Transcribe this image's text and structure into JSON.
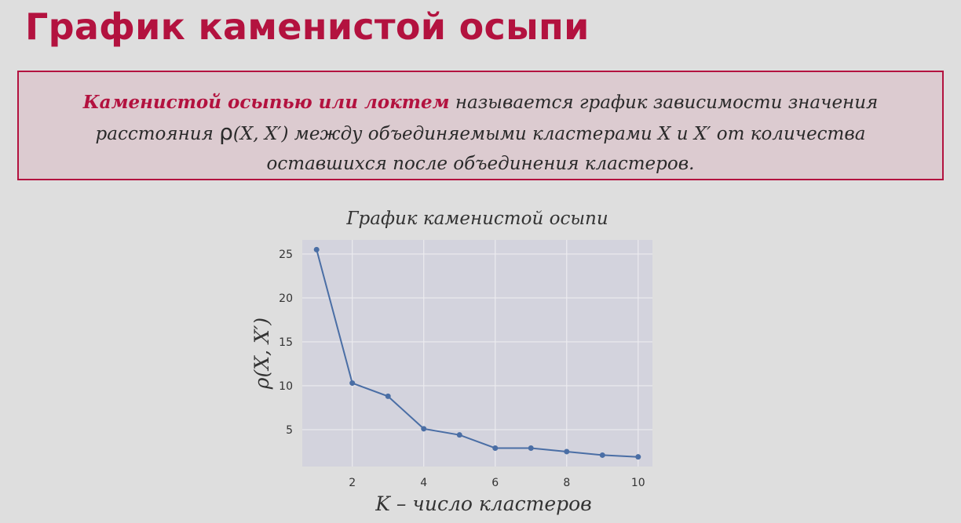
{
  "slide": {
    "title": "График каменистой осыпи"
  },
  "definition": {
    "term": "Каменистой осыпью или локтем",
    "text_part1": " называется график зависимости значения расстояния ",
    "rho_symbol": "ρ",
    "text_part2": "(X, X′) между объединяемыми кластерами X и X′ от количества оставшихся после объединения кластеров."
  },
  "colors": {
    "accent": "#b3123f",
    "definition_bg": "#dccbd0",
    "plot_bg": "#d3d3dd",
    "gridline": "#ecebef",
    "series": "#4a6ea5"
  },
  "chart_data": {
    "type": "line",
    "title": "График каменистой осыпи",
    "xlabel": "K – число кластеров",
    "ylabel": "ρ(X, X′)",
    "x": [
      1,
      2,
      3,
      4,
      5,
      6,
      7,
      8,
      9,
      10
    ],
    "series": [
      {
        "values": [
          25.5,
          10.3,
          8.8,
          5.1,
          4.4,
          2.9,
          2.9,
          2.5,
          2.1,
          1.9
        ]
      }
    ],
    "xlim": [
      0.6,
      10.4
    ],
    "ylim": [
      0.8,
      26.6
    ],
    "xticks": [
      2,
      4,
      6,
      8,
      10
    ],
    "yticks": [
      5,
      10,
      15,
      20,
      25
    ],
    "xtick_labels": [
      "2",
      "4",
      "6",
      "8",
      "10"
    ],
    "ytick_labels": [
      "5",
      "10",
      "15",
      "20",
      "25"
    ],
    "grid": true,
    "markers": true
  }
}
